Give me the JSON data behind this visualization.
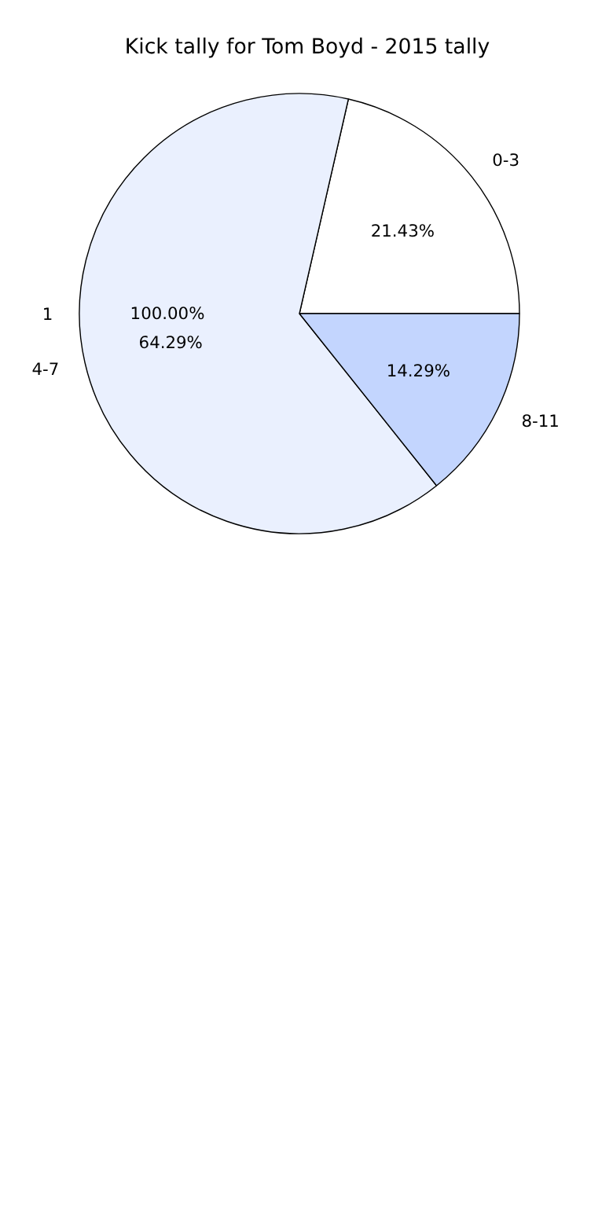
{
  "chart_data": {
    "type": "pie",
    "title": "Kick tally for Tom Boyd - 2015 tally",
    "categories": [
      "0-3",
      "4-7",
      "8-11"
    ],
    "values": [
      21.43,
      64.29,
      14.29
    ],
    "colors": [
      "#ffffff",
      "#eaf0fe",
      "#c3d5fe"
    ],
    "value_labels": [
      "21.43%",
      "64.29%",
      "14.29%"
    ],
    "annotations": [
      "1",
      "100.00%"
    ]
  }
}
